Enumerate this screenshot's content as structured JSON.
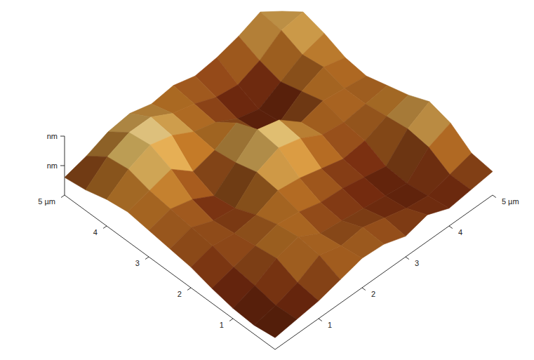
{
  "chart_data": {
    "type": "surface",
    "xlim": [
      0,
      5
    ],
    "xticks": [
      1,
      2,
      3,
      4,
      {
        "value": 5,
        "label": "5 µm"
      }
    ],
    "ylim": [
      0,
      5
    ],
    "yticks": [
      1,
      2,
      3,
      4,
      {
        "value": 5,
        "label": "5 µm"
      }
    ],
    "zlim": [
      0,
      200
    ],
    "zticks": [
      {
        "value": 100,
        "label": "nm"
      },
      {
        "value": 200,
        "label": "nm"
      }
    ],
    "z": [
      [
        40,
        50,
        60,
        80,
        100,
        95,
        70,
        90,
        60,
        70,
        80
      ],
      [
        30,
        45,
        70,
        110,
        90,
        100,
        80,
        60,
        50,
        70,
        90
      ],
      [
        35,
        60,
        100,
        120,
        80,
        70,
        60,
        50,
        40,
        110,
        140
      ],
      [
        50,
        70,
        90,
        110,
        100,
        80,
        75,
        60,
        45,
        120,
        160
      ],
      [
        70,
        90,
        80,
        90,
        120,
        110,
        90,
        70,
        80,
        110,
        130
      ],
      [
        80,
        100,
        70,
        60,
        130,
        160,
        140,
        100,
        90,
        100,
        110
      ],
      [
        90,
        110,
        90,
        50,
        110,
        170,
        150,
        90,
        110,
        100,
        90
      ],
      [
        100,
        120,
        140,
        80,
        100,
        140,
        60,
        40,
        90,
        120,
        100
      ],
      [
        90,
        140,
        170,
        150,
        110,
        90,
        50,
        30,
        70,
        110,
        130
      ],
      [
        70,
        130,
        160,
        160,
        120,
        100,
        70,
        60,
        90,
        140,
        150
      ],
      [
        60,
        80,
        110,
        120,
        100,
        110,
        90,
        100,
        120,
        150,
        100
      ]
    ]
  }
}
